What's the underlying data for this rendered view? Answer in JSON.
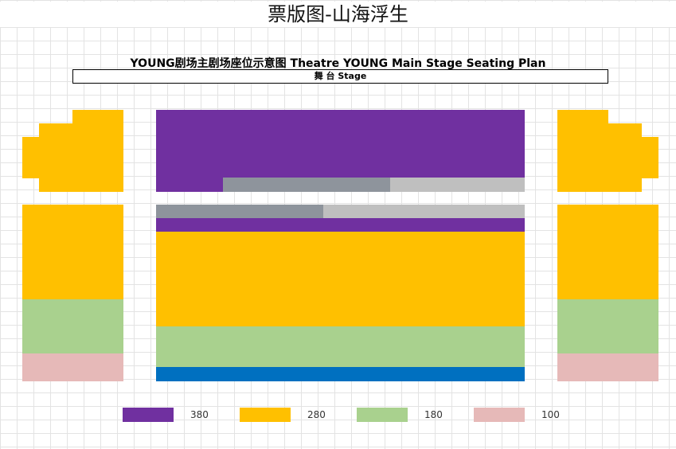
{
  "page_title": "票版图-山海浮生",
  "plan_title": "YOUNG剧场主剧场座位示意图  Theatre YOUNG Main Stage Seating Plan",
  "stage_label": "舞 台 Stage",
  "colors": {
    "tier_380": "#7030a0",
    "tier_280": "#ffc000",
    "tier_180": "#a9d18e",
    "tier_100": "#e6b9b8",
    "gray_dark": "#8e949c",
    "gray_light": "#bfbfbf",
    "blue": "#0070c0"
  },
  "legend": [
    {
      "price": "380",
      "color": "#7030a0"
    },
    {
      "price": "280",
      "color": "#ffc000"
    },
    {
      "price": "180",
      "color": "#a9d18e"
    },
    {
      "price": "100",
      "color": "#e6b9b8"
    }
  ]
}
